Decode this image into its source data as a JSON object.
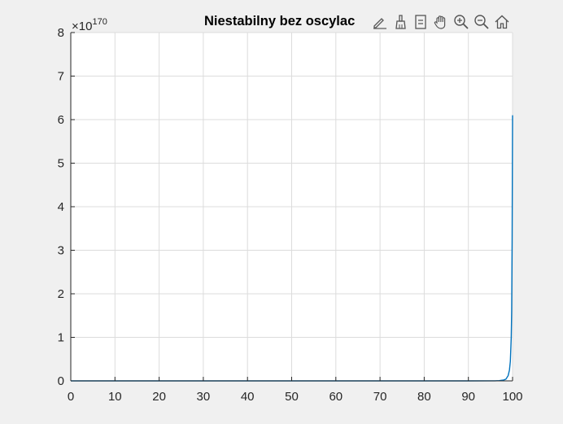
{
  "chart_data": {
    "type": "line",
    "title": "Niestabilny bez oscylac",
    "xlabel": "",
    "ylabel": "",
    "xlim": [
      0,
      100
    ],
    "ylim": [
      0,
      8
    ],
    "y_exponent_base": "×10",
    "y_exponent_power": "170",
    "grid": true,
    "x_ticks": [
      "0",
      "10",
      "20",
      "30",
      "40",
      "50",
      "60",
      "70",
      "80",
      "90",
      "100"
    ],
    "y_ticks": [
      "0",
      "1",
      "2",
      "3",
      "4",
      "5",
      "6",
      "7",
      "8"
    ],
    "series": [
      {
        "color": "#0072bd",
        "x": [
          0,
          90,
          96,
          97,
          98,
          98.5,
          99,
          99.3,
          99.5,
          99.7,
          99.8,
          99.9,
          100
        ],
        "y": [
          0,
          0,
          0.002,
          0.006,
          0.02,
          0.04,
          0.12,
          0.25,
          0.45,
          1.0,
          1.6,
          3.2,
          6.1
        ]
      }
    ]
  },
  "toolbar": {
    "icons": [
      "edit-icon",
      "brush-icon",
      "datatip-icon",
      "pan-icon",
      "zoom-in-icon",
      "zoom-out-icon",
      "home-icon"
    ]
  }
}
